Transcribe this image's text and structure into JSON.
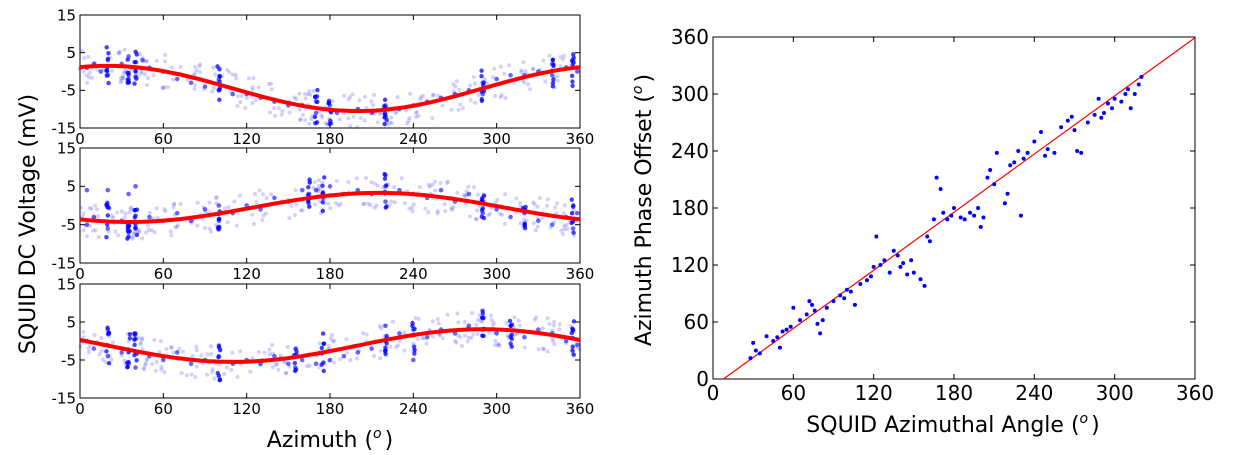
{
  "figure": {
    "left_ylabel": "SQUID DC Voltage (mV)",
    "left_xlabel": "Azimuth (",
    "left_xlabel_sup": "o",
    "left_xlabel_end": ")",
    "right_ylabel": "Azimuth Phase Offset (",
    "right_ylabel_sup": "o",
    "right_ylabel_end": ")",
    "right_xlabel": "SQUID Azimuthal Angle (",
    "right_xlabel_sup": "o",
    "right_xlabel_end": ")"
  },
  "colors": {
    "points": "#0000ff",
    "fit": "#ff0000"
  },
  "chart_data": [
    {
      "type": "scatter",
      "panel": "top-left",
      "xlim": [
        0,
        360
      ],
      "ylim": [
        -15,
        15
      ],
      "xticks": [
        0,
        60,
        120,
        180,
        240,
        300,
        360
      ],
      "yticks": [
        -15,
        -5,
        5,
        15
      ],
      "fit": {
        "model": "sinusoid",
        "offset": -4.5,
        "amplitude": 6.0,
        "peak_azimuth": 20
      },
      "dense_columns": [
        20,
        35,
        40,
        100,
        170,
        180,
        220,
        290,
        340,
        355
      ],
      "series": [
        {
          "kind": "measurements",
          "points": [
            [
              5,
              1
            ],
            [
              10,
              2
            ],
            [
              15,
              0
            ],
            [
              20,
              3
            ],
            [
              20,
              -1
            ],
            [
              30,
              2
            ],
            [
              35,
              4
            ],
            [
              35,
              -2
            ],
            [
              40,
              0
            ],
            [
              45,
              3
            ],
            [
              50,
              1
            ],
            [
              60,
              0
            ],
            [
              70,
              -2
            ],
            [
              80,
              -3
            ],
            [
              90,
              -4
            ],
            [
              100,
              -5
            ],
            [
              100,
              -2
            ],
            [
              110,
              -6
            ],
            [
              120,
              -6
            ],
            [
              130,
              -7
            ],
            [
              140,
              -8
            ],
            [
              150,
              -9
            ],
            [
              160,
              -9
            ],
            [
              170,
              -8
            ],
            [
              170,
              -11
            ],
            [
              175,
              -10
            ],
            [
              180,
              -9
            ],
            [
              185,
              -11
            ],
            [
              200,
              -10
            ],
            [
              210,
              -11
            ],
            [
              220,
              -9
            ],
            [
              220,
              -12
            ],
            [
              230,
              -10
            ],
            [
              240,
              -9
            ],
            [
              250,
              -8
            ],
            [
              260,
              -7
            ],
            [
              270,
              -6
            ],
            [
              280,
              -5
            ],
            [
              290,
              -3
            ],
            [
              290,
              -6
            ],
            [
              300,
              -2
            ],
            [
              310,
              -1
            ],
            [
              320,
              -1
            ],
            [
              330,
              0
            ],
            [
              340,
              2
            ],
            [
              340,
              -1
            ],
            [
              350,
              1
            ],
            [
              355,
              3
            ],
            [
              358,
              0
            ]
          ]
        }
      ]
    },
    {
      "type": "scatter",
      "panel": "middle-left",
      "xlim": [
        0,
        360
      ],
      "ylim": [
        -15,
        15
      ],
      "xticks": [
        0,
        60,
        120,
        180,
        240,
        300,
        360
      ],
      "yticks": [
        -15,
        -5,
        5,
        15
      ],
      "fit": {
        "model": "sinusoid",
        "offset": -0.5,
        "amplitude": 3.8,
        "peak_azimuth": 215
      },
      "dense_columns": [
        20,
        35,
        40,
        100,
        165,
        175,
        220,
        290,
        320,
        355
      ],
      "series": [
        {
          "kind": "measurements",
          "points": [
            [
              5,
              4
            ],
            [
              5,
              -5
            ],
            [
              10,
              -3
            ],
            [
              20,
              4
            ],
            [
              20,
              -6
            ],
            [
              30,
              -4
            ],
            [
              35,
              3
            ],
            [
              35,
              -7
            ],
            [
              40,
              5
            ],
            [
              40,
              -6
            ],
            [
              50,
              -3
            ],
            [
              60,
              -4
            ],
            [
              70,
              -2
            ],
            [
              80,
              -4
            ],
            [
              90,
              -1
            ],
            [
              100,
              0
            ],
            [
              100,
              -4
            ],
            [
              110,
              -2
            ],
            [
              120,
              0
            ],
            [
              130,
              -1
            ],
            [
              140,
              2
            ],
            [
              150,
              1
            ],
            [
              160,
              4
            ],
            [
              165,
              3
            ],
            [
              170,
              4
            ],
            [
              175,
              2
            ],
            [
              180,
              5
            ],
            [
              190,
              3
            ],
            [
              200,
              4
            ],
            [
              210,
              3
            ],
            [
              220,
              5
            ],
            [
              220,
              1
            ],
            [
              230,
              4
            ],
            [
              240,
              3
            ],
            [
              250,
              2
            ],
            [
              260,
              4
            ],
            [
              270,
              1
            ],
            [
              280,
              3
            ],
            [
              290,
              -2
            ],
            [
              290,
              1
            ],
            [
              300,
              -1
            ],
            [
              310,
              -3
            ],
            [
              320,
              -2
            ],
            [
              330,
              -4
            ],
            [
              340,
              -5
            ],
            [
              350,
              -3
            ],
            [
              355,
              -6
            ],
            [
              358,
              -2
            ]
          ]
        }
      ]
    },
    {
      "type": "scatter",
      "panel": "bottom-left",
      "xlim": [
        0,
        360
      ],
      "ylim": [
        -15,
        15
      ],
      "xticks": [
        0,
        60,
        120,
        180,
        240,
        300,
        360
      ],
      "yticks": [
        -15,
        -5,
        5,
        15
      ],
      "fit": {
        "model": "sinusoid",
        "offset": -1.2,
        "amplitude": 4.3,
        "peak_azimuth": 290
      },
      "dense_columns": [
        20,
        35,
        40,
        100,
        155,
        175,
        220,
        240,
        290,
        310,
        355
      ],
      "series": [
        {
          "kind": "measurements",
          "points": [
            [
              5,
              0
            ],
            [
              10,
              -2
            ],
            [
              20,
              -4
            ],
            [
              20,
              3
            ],
            [
              30,
              -3
            ],
            [
              35,
              -6
            ],
            [
              40,
              2
            ],
            [
              40,
              -7
            ],
            [
              50,
              -4
            ],
            [
              60,
              -5
            ],
            [
              70,
              -3
            ],
            [
              80,
              -6
            ],
            [
              90,
              -5
            ],
            [
              100,
              -4
            ],
            [
              110,
              -6
            ],
            [
              120,
              -5
            ],
            [
              130,
              -6
            ],
            [
              140,
              -4
            ],
            [
              150,
              -6
            ],
            [
              155,
              -7
            ],
            [
              160,
              -5
            ],
            [
              170,
              -6
            ],
            [
              175,
              -3
            ],
            [
              180,
              -5
            ],
            [
              190,
              -4
            ],
            [
              200,
              -3
            ],
            [
              210,
              -2
            ],
            [
              220,
              0
            ],
            [
              220,
              4
            ],
            [
              230,
              2
            ],
            [
              240,
              -5
            ],
            [
              240,
              3
            ],
            [
              250,
              1
            ],
            [
              260,
              3
            ],
            [
              270,
              2
            ],
            [
              280,
              4
            ],
            [
              290,
              3
            ],
            [
              290,
              6
            ],
            [
              300,
              2
            ],
            [
              310,
              4
            ],
            [
              320,
              1
            ],
            [
              330,
              3
            ],
            [
              340,
              2
            ],
            [
              350,
              0
            ],
            [
              355,
              3
            ],
            [
              358,
              -1
            ]
          ]
        }
      ]
    },
    {
      "type": "scatter",
      "panel": "right",
      "xlim": [
        0,
        360
      ],
      "ylim": [
        0,
        360
      ],
      "xticks": [
        0,
        60,
        120,
        180,
        240,
        300,
        360
      ],
      "yticks": [
        0,
        60,
        120,
        180,
        240,
        300,
        360
      ],
      "fit_line": {
        "slope": 1.02,
        "intercept": -8
      },
      "series": [
        {
          "kind": "points",
          "points": [
            [
              28,
              22
            ],
            [
              30,
              38
            ],
            [
              32,
              30
            ],
            [
              35,
              27
            ],
            [
              40,
              45
            ],
            [
              45,
              40
            ],
            [
              48,
              44
            ],
            [
              50,
              33
            ],
            [
              52,
              50
            ],
            [
              55,
              52
            ],
            [
              58,
              55
            ],
            [
              60,
              75
            ],
            [
              65,
              62
            ],
            [
              70,
              68
            ],
            [
              72,
              82
            ],
            [
              74,
              78
            ],
            [
              76,
              72
            ],
            [
              78,
              58
            ],
            [
              80,
              48
            ],
            [
              82,
              62
            ],
            [
              85,
              75
            ],
            [
              90,
              82
            ],
            [
              95,
              88
            ],
            [
              98,
              85
            ],
            [
              100,
              94
            ],
            [
              103,
              92
            ],
            [
              106,
              78
            ],
            [
              110,
              100
            ],
            [
              115,
              104
            ],
            [
              118,
              108
            ],
            [
              120,
              118
            ],
            [
              122,
              150
            ],
            [
              125,
              120
            ],
            [
              128,
              125
            ],
            [
              132,
              112
            ],
            [
              135,
              135
            ],
            [
              138,
              130
            ],
            [
              140,
              118
            ],
            [
              142,
              122
            ],
            [
              145,
              110
            ],
            [
              148,
              125
            ],
            [
              150,
              112
            ],
            [
              155,
              105
            ],
            [
              158,
              98
            ],
            [
              160,
              150
            ],
            [
              162,
              145
            ],
            [
              165,
              168
            ],
            [
              167,
              212
            ],
            [
              170,
              200
            ],
            [
              172,
              175
            ],
            [
              175,
              168
            ],
            [
              178,
              172
            ],
            [
              180,
              180
            ],
            [
              185,
              170
            ],
            [
              188,
              168
            ],
            [
              192,
              175
            ],
            [
              195,
              172
            ],
            [
              198,
              180
            ],
            [
              200,
              160
            ],
            [
              202,
              170
            ],
            [
              205,
              212
            ],
            [
              207,
              220
            ],
            [
              210,
              205
            ],
            [
              212,
              238
            ],
            [
              218,
              185
            ],
            [
              220,
              195
            ],
            [
              222,
              225
            ],
            [
              225,
              228
            ],
            [
              228,
              240
            ],
            [
              230,
              172
            ],
            [
              232,
              232
            ],
            [
              235,
              238
            ],
            [
              240,
              250
            ],
            [
              245,
              260
            ],
            [
              248,
              235
            ],
            [
              250,
              242
            ],
            [
              255,
              238
            ],
            [
              260,
              265
            ],
            [
              265,
              272
            ],
            [
              268,
              276
            ],
            [
              270,
              262
            ],
            [
              272,
              240
            ],
            [
              275,
              238
            ],
            [
              280,
              270
            ],
            [
              285,
              278
            ],
            [
              288,
              295
            ],
            [
              290,
              275
            ],
            [
              292,
              280
            ],
            [
              295,
              290
            ],
            [
              298,
              285
            ],
            [
              300,
              295
            ],
            [
              305,
              292
            ],
            [
              308,
              300
            ],
            [
              310,
              305
            ],
            [
              312,
              285
            ],
            [
              315,
              300
            ],
            [
              318,
              310
            ],
            [
              320,
              318
            ]
          ]
        }
      ]
    }
  ]
}
